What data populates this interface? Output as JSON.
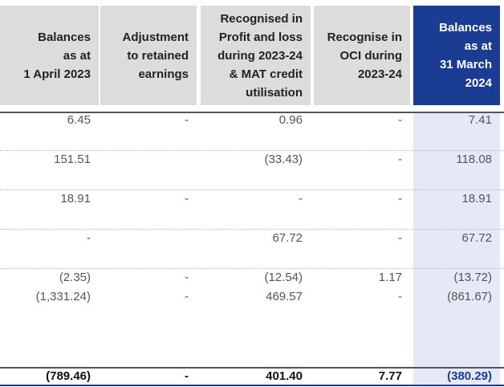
{
  "headers": [
    "Balances\nas at\n1 April 2023",
    "Adjustment\nto retained\nearnings",
    "Recognised in\nProfit and loss\nduring 2023-24\n& MAT credit\nutilisation",
    "Recognise in\nOCI during\n2023-24",
    "Balances\nas at\n31 March\n2024"
  ],
  "rows": [
    [
      "6.45",
      "-",
      "0.96",
      "-",
      "7.41"
    ],
    [
      "151.51",
      "",
      "(33.43)",
      "-",
      "118.08"
    ],
    [
      "18.91",
      "-",
      "-",
      "-",
      "18.91"
    ],
    [
      "-",
      "",
      "67.72",
      "-",
      "67.72"
    ],
    [
      "(2.35)",
      "-",
      "(12.54)",
      "1.17",
      "(13.72)"
    ],
    [
      "(1,331.24)",
      "-",
      "469.57",
      "-",
      "(861.67)"
    ]
  ],
  "total": [
    "(789.46)",
    "-",
    "401.40",
    "7.77",
    "(380.29)"
  ]
}
